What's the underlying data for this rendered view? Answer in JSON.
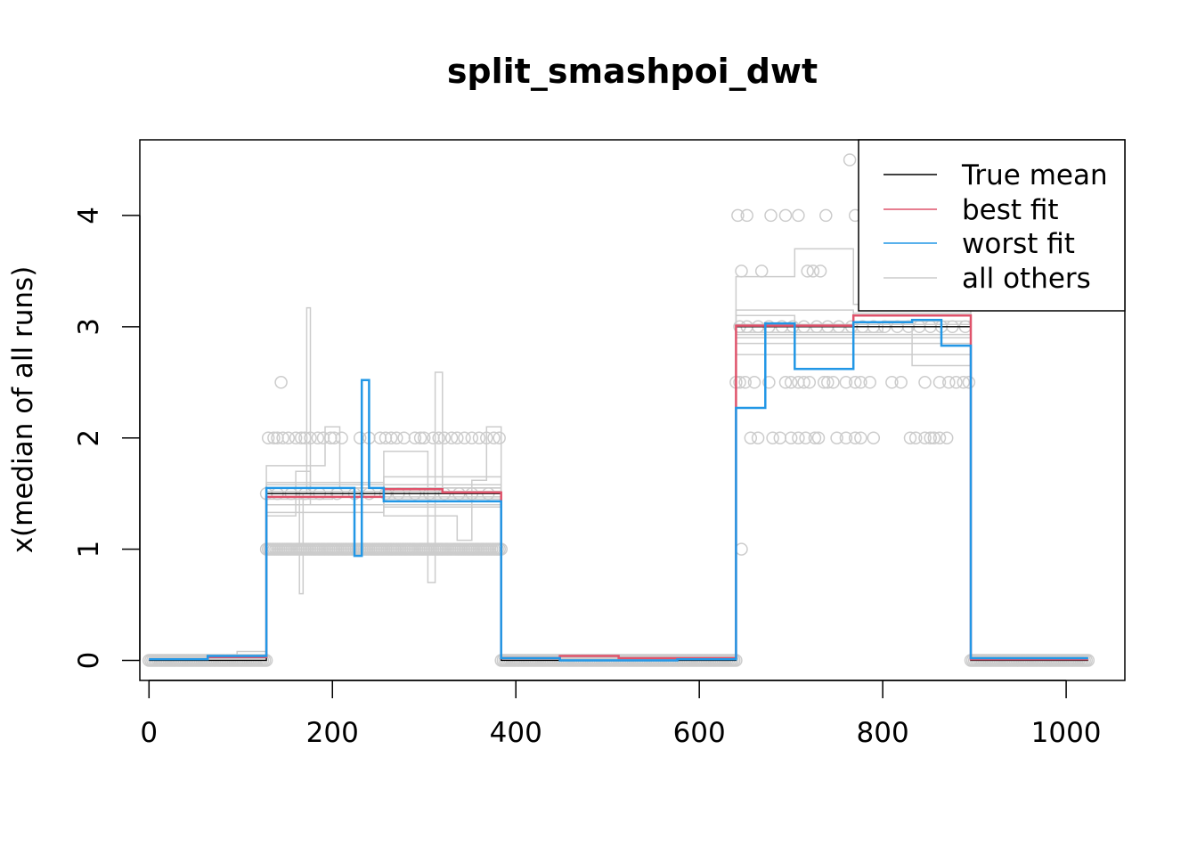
{
  "chart_data": {
    "type": "line",
    "title": "split_smashpoi_dwt",
    "xlabel": "",
    "ylabel": "x(median of all runs)",
    "xlim": [
      -10,
      1064
    ],
    "ylim": [
      -0.18,
      4.68
    ],
    "xticks": [
      0,
      200,
      400,
      600,
      800,
      1000
    ],
    "yticks": [
      0,
      1,
      2,
      3,
      4
    ],
    "xtick_labels": [
      "0",
      "200",
      "400",
      "600",
      "800",
      "1000"
    ],
    "ytick_labels": [
      "0",
      "1",
      "2",
      "3",
      "4"
    ],
    "legend": {
      "position": "top-right",
      "entries": [
        {
          "label": "True mean",
          "color": "#000000"
        },
        {
          "label": "best fit",
          "color": "#DF536B"
        },
        {
          "label": "worst fit",
          "color": "#2297E6"
        },
        {
          "label": "all others",
          "color": "#CCCCCC"
        }
      ]
    },
    "series": [
      {
        "name": "True mean",
        "color": "#000000",
        "steps": [
          [
            0,
            128,
            0
          ],
          [
            128,
            384,
            1.5
          ],
          [
            384,
            640,
            0
          ],
          [
            640,
            896,
            3
          ],
          [
            896,
            1024,
            0
          ]
        ]
      },
      {
        "name": "best fit",
        "color": "#DF536B",
        "steps": [
          [
            0,
            64,
            0.01
          ],
          [
            64,
            128,
            0.03
          ],
          [
            128,
            256,
            1.47
          ],
          [
            256,
            320,
            1.54
          ],
          [
            320,
            384,
            1.51
          ],
          [
            384,
            448,
            0.02
          ],
          [
            448,
            512,
            0.04
          ],
          [
            512,
            640,
            0.02
          ],
          [
            640,
            768,
            3.01
          ],
          [
            768,
            896,
            3.1
          ],
          [
            896,
            1024,
            0.01
          ]
        ]
      },
      {
        "name": "worst fit",
        "color": "#2297E6",
        "steps": [
          [
            0,
            64,
            0.01
          ],
          [
            64,
            128,
            0.04
          ],
          [
            128,
            224,
            1.55
          ],
          [
            224,
            232,
            0.94
          ],
          [
            232,
            240,
            2.52
          ],
          [
            240,
            256,
            1.55
          ],
          [
            256,
            384,
            1.43
          ],
          [
            384,
            448,
            0.02
          ],
          [
            448,
            576,
            0.0
          ],
          [
            576,
            640,
            0.01
          ],
          [
            640,
            672,
            2.27
          ],
          [
            672,
            704,
            3.03
          ],
          [
            704,
            768,
            2.62
          ],
          [
            768,
            832,
            3.04
          ],
          [
            832,
            864,
            3.06
          ],
          [
            864,
            896,
            2.83
          ],
          [
            896,
            1024,
            0.02
          ]
        ]
      },
      {
        "name": "all others",
        "color": "#CCCCCC",
        "runs": [
          {
            "steps": [
              [
                0,
                128,
                0.02
              ],
              [
                128,
                256,
                1.5
              ],
              [
                256,
                384,
                1.52
              ],
              [
                384,
                640,
                0.02
              ],
              [
                640,
                896,
                3.02
              ],
              [
                896,
                1024,
                0.01
              ]
            ]
          },
          {
            "steps": [
              [
                0,
                128,
                0.03
              ],
              [
                128,
                200,
                1.45
              ],
              [
                200,
                384,
                1.55
              ],
              [
                384,
                640,
                0.01
              ],
              [
                640,
                800,
                2.95
              ],
              [
                800,
                896,
                3.05
              ],
              [
                896,
                1024,
                0.02
              ]
            ]
          },
          {
            "steps": [
              [
                0,
                96,
                0.0
              ],
              [
                96,
                128,
                0.08
              ],
              [
                128,
                256,
                1.6
              ],
              [
                256,
                384,
                1.47
              ],
              [
                384,
                640,
                0.03
              ],
              [
                640,
                768,
                2.9
              ],
              [
                768,
                896,
                3.12
              ],
              [
                896,
                1024,
                0.0
              ]
            ]
          },
          {
            "steps": [
              [
                0,
                128,
                0.02
              ],
              [
                128,
                160,
                1.3
              ],
              [
                160,
                176,
                1.7
              ],
              [
                176,
                256,
                1.55
              ],
              [
                256,
                384,
                1.58
              ],
              [
                384,
                640,
                0.02
              ],
              [
                640,
                704,
                3.1
              ],
              [
                704,
                896,
                3.0
              ],
              [
                896,
                1024,
                0.01
              ]
            ]
          },
          {
            "steps": [
              [
                0,
                128,
                0.01
              ],
              [
                128,
                164,
                1.5
              ],
              [
                164,
                168,
                0.6
              ],
              [
                168,
                172,
                1.5
              ],
              [
                172,
                176,
                3.17
              ],
              [
                176,
                384,
                1.4
              ],
              [
                384,
                640,
                0.02
              ],
              [
                640,
                896,
                2.85
              ],
              [
                896,
                1024,
                0.02
              ]
            ]
          },
          {
            "steps": [
              [
                0,
                128,
                0.02
              ],
              [
                128,
                192,
                1.75
              ],
              [
                192,
                208,
                2.1
              ],
              [
                208,
                256,
                1.55
              ],
              [
                256,
                384,
                1.45
              ],
              [
                384,
                640,
                0.01
              ],
              [
                640,
                704,
                3.45
              ],
              [
                704,
                768,
                3.7
              ],
              [
                768,
                896,
                3.2
              ],
              [
                896,
                1024,
                0.02
              ]
            ]
          },
          {
            "steps": [
              [
                0,
                128,
                0.01
              ],
              [
                128,
                256,
                1.4
              ],
              [
                256,
                304,
                1.88
              ],
              [
                304,
                312,
                0.7
              ],
              [
                312,
                320,
                2.59
              ],
              [
                320,
                384,
                1.55
              ],
              [
                384,
                640,
                0.02
              ],
              [
                640,
                896,
                2.75
              ],
              [
                896,
                1024,
                0.01
              ]
            ]
          },
          {
            "steps": [
              [
                0,
                128,
                0.03
              ],
              [
                128,
                256,
                1.58
              ],
              [
                256,
                336,
                1.3
              ],
              [
                336,
                352,
                1.08
              ],
              [
                352,
                368,
                1.62
              ],
              [
                368,
                384,
                2.1
              ],
              [
                384,
                640,
                0.03
              ],
              [
                640,
                832,
                3.0
              ],
              [
                832,
                896,
                2.65
              ],
              [
                896,
                1024,
                0.01
              ]
            ]
          },
          {
            "steps": [
              [
                0,
                128,
                0.02
              ],
              [
                128,
                256,
                1.33
              ],
              [
                256,
                384,
                1.65
              ],
              [
                384,
                640,
                0.02
              ],
              [
                640,
                896,
                2.93
              ],
              [
                896,
                1024,
                0.02
              ]
            ]
          },
          {
            "steps": [
              [
                0,
                128,
                0.01
              ],
              [
                128,
                256,
                1.52
              ],
              [
                256,
                384,
                1.38
              ],
              [
                384,
                640,
                0.01
              ],
              [
                640,
                768,
                3.15
              ],
              [
                768,
                896,
                2.9
              ],
              [
                896,
                1024,
                0.01
              ]
            ]
          }
        ]
      }
    ],
    "points": {
      "color": "#CCCCCC",
      "dense_ranges": [
        {
          "from": 0,
          "to": 128,
          "y": 0
        },
        {
          "from": 384,
          "to": 640,
          "y": 0
        },
        {
          "from": 896,
          "to": 1024,
          "y": 0
        },
        {
          "from": 128,
          "to": 384,
          "y": 1
        }
      ],
      "scattered": [
        {
          "y": 1.5,
          "x": [
            128,
            140,
            155,
            170,
            186,
            205,
            224,
            240,
            258,
            272,
            290,
            306,
            322,
            338,
            352,
            370
          ]
        },
        {
          "y": 2,
          "x": [
            130,
            136,
            140,
            146,
            152,
            160,
            166,
            170,
            176,
            184,
            190,
            198,
            202,
            210,
            230,
            240,
            252,
            258,
            264,
            270,
            278,
            290,
            296,
            300,
            310,
            316,
            322,
            330,
            336,
            344,
            352,
            360,
            368,
            376,
            382
          ]
        },
        {
          "y": 2.5,
          "x": [
            144
          ]
        },
        {
          "y": 1,
          "x": [
            646
          ]
        },
        {
          "y": 2,
          "x": [
            656,
            664,
            680,
            688,
            700,
            708,
            716,
            726,
            730,
            750,
            760,
            770,
            776,
            790,
            830,
            836,
            846,
            852,
            856,
            862,
            870
          ]
        },
        {
          "y": 2.5,
          "x": [
            640,
            644,
            650,
            660,
            676,
            694,
            700,
            708,
            714,
            720,
            736,
            740,
            746,
            760,
            770,
            776,
            786,
            810,
            820,
            846,
            862,
            872,
            880,
            888,
            894
          ]
        },
        {
          "y": 3,
          "x": [
            644,
            652,
            664,
            676,
            690,
            702,
            714,
            728,
            740,
            752,
            766,
            778,
            790,
            802,
            816,
            828,
            840,
            852,
            864,
            876,
            890
          ]
        },
        {
          "y": 3.5,
          "x": [
            646,
            668,
            718,
            724,
            732
          ]
        },
        {
          "y": 4,
          "x": [
            642,
            652,
            678,
            694,
            708,
            738,
            770
          ]
        },
        {
          "y": 4.5,
          "x": [
            764
          ]
        }
      ]
    }
  }
}
